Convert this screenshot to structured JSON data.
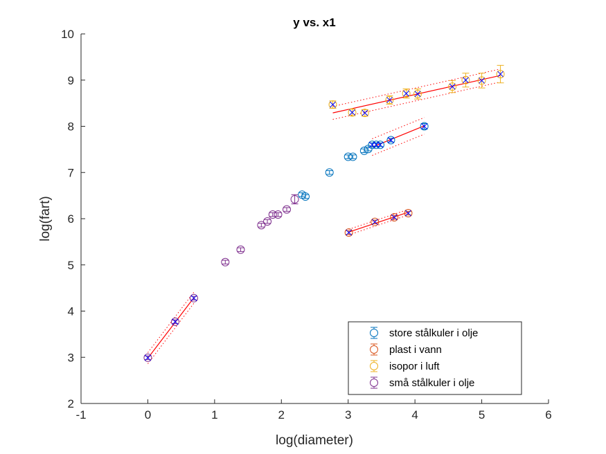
{
  "chart_data": {
    "type": "scatter",
    "title": "y vs. x1",
    "xlabel": "log(diameter)",
    "ylabel": "log(fart)",
    "xlim": [
      -1,
      6
    ],
    "ylim": [
      2,
      10
    ],
    "xticks": [
      "-1",
      "0",
      "1",
      "2",
      "3",
      "4",
      "5",
      "6"
    ],
    "yticks": [
      "2",
      "3",
      "4",
      "5",
      "6",
      "7",
      "8",
      "9",
      "10"
    ],
    "legend_position": "bottom-right",
    "grid": false,
    "series": [
      {
        "name": "store stålkuler i olje",
        "color": "#0072BD",
        "points": [
          {
            "x": 2.31,
            "y": 6.52,
            "err": 0.04
          },
          {
            "x": 2.36,
            "y": 6.48,
            "err": 0.04
          },
          {
            "x": 2.72,
            "y": 7.0,
            "err": 0.04
          },
          {
            "x": 3.0,
            "y": 7.34,
            "err": 0.04
          },
          {
            "x": 3.07,
            "y": 7.34,
            "err": 0.04
          },
          {
            "x": 3.24,
            "y": 7.47,
            "err": 0.04
          },
          {
            "x": 3.3,
            "y": 7.51,
            "err": 0.04
          },
          {
            "x": 3.36,
            "y": 7.6,
            "err": 0.04
          },
          {
            "x": 3.42,
            "y": 7.6,
            "err": 0.04
          },
          {
            "x": 3.48,
            "y": 7.6,
            "err": 0.04
          },
          {
            "x": 3.64,
            "y": 7.7,
            "err": 0.04
          },
          {
            "x": 4.14,
            "y": 8.0,
            "err": 0.06
          }
        ],
        "fitted": [
          {
            "x": 3.36,
            "y": 7.6
          },
          {
            "x": 3.42,
            "y": 7.6
          },
          {
            "x": 3.48,
            "y": 7.6
          },
          {
            "x": 3.64,
            "y": 7.7
          },
          {
            "x": 4.14,
            "y": 8.0
          }
        ],
        "fit": {
          "x0": 3.36,
          "x1": 4.14,
          "y0": 7.55,
          "y1": 8.01,
          "band": 0.18
        }
      },
      {
        "name": "plast i vann",
        "color": "#D95319",
        "points": [
          {
            "x": 3.01,
            "y": 5.7,
            "err": 0.04
          },
          {
            "x": 3.4,
            "y": 5.93,
            "err": 0.04
          },
          {
            "x": 3.69,
            "y": 6.03,
            "err": 0.04
          },
          {
            "x": 3.9,
            "y": 6.12,
            "err": 0.04
          }
        ],
        "fitted": [
          {
            "x": 3.01,
            "y": 5.7
          },
          {
            "x": 3.4,
            "y": 5.93
          },
          {
            "x": 3.69,
            "y": 6.03
          },
          {
            "x": 3.9,
            "y": 6.12
          }
        ],
        "fit": {
          "x0": 3.01,
          "x1": 3.9,
          "y0": 5.71,
          "y1": 6.14,
          "band": 0.06
        }
      },
      {
        "name": "isopor i luft",
        "color": "#EDB120",
        "points": [
          {
            "x": 2.77,
            "y": 8.47,
            "err": 0.08
          },
          {
            "x": 3.06,
            "y": 8.3,
            "err": 0.07
          },
          {
            "x": 3.25,
            "y": 8.29,
            "err": 0.07
          },
          {
            "x": 3.62,
            "y": 8.57,
            "err": 0.09
          },
          {
            "x": 3.87,
            "y": 8.71,
            "err": 0.1
          },
          {
            "x": 4.04,
            "y": 8.7,
            "err": 0.11
          },
          {
            "x": 4.56,
            "y": 8.86,
            "err": 0.13
          },
          {
            "x": 4.76,
            "y": 9.0,
            "err": 0.15
          },
          {
            "x": 5.0,
            "y": 8.99,
            "err": 0.16
          },
          {
            "x": 5.28,
            "y": 9.13,
            "err": 0.19
          }
        ],
        "fitted": [
          {
            "x": 2.77,
            "y": 8.47
          },
          {
            "x": 3.06,
            "y": 8.3
          },
          {
            "x": 3.25,
            "y": 8.29
          },
          {
            "x": 3.62,
            "y": 8.57
          },
          {
            "x": 3.87,
            "y": 8.71
          },
          {
            "x": 4.04,
            "y": 8.7
          },
          {
            "x": 4.56,
            "y": 8.86
          },
          {
            "x": 4.76,
            "y": 9.0
          },
          {
            "x": 5.0,
            "y": 8.99
          },
          {
            "x": 5.28,
            "y": 9.13
          }
        ],
        "fit": {
          "x0": 2.77,
          "x1": 5.28,
          "y0": 8.29,
          "y1": 9.1,
          "band": 0.14
        }
      },
      {
        "name": "små stålkuler i olje",
        "color": "#7E2F8E",
        "points": [
          {
            "x": 0.0,
            "y": 2.99,
            "err": 0.04
          },
          {
            "x": 0.41,
            "y": 3.77,
            "err": 0.04
          },
          {
            "x": 0.69,
            "y": 4.28,
            "err": 0.04
          },
          {
            "x": 1.16,
            "y": 5.06,
            "err": 0.04
          },
          {
            "x": 1.39,
            "y": 5.33,
            "err": 0.04
          },
          {
            "x": 1.7,
            "y": 5.86,
            "err": 0.04
          },
          {
            "x": 1.79,
            "y": 5.94,
            "err": 0.04
          },
          {
            "x": 1.87,
            "y": 6.09,
            "err": 0.04
          },
          {
            "x": 1.95,
            "y": 6.09,
            "err": 0.04
          },
          {
            "x": 2.08,
            "y": 6.2,
            "err": 0.04
          },
          {
            "x": 2.2,
            "y": 6.42,
            "err": 0.1
          }
        ],
        "fitted": [
          {
            "x": 0.0,
            "y": 2.99
          },
          {
            "x": 0.41,
            "y": 3.77
          },
          {
            "x": 0.69,
            "y": 4.28
          }
        ],
        "fit": {
          "x0": 0.0,
          "x1": 0.69,
          "y0": 2.98,
          "y1": 4.29,
          "band": 0.12
        }
      }
    ],
    "fit_line_color": "#FF0000",
    "fitted_marker_color": "#0000FF"
  }
}
